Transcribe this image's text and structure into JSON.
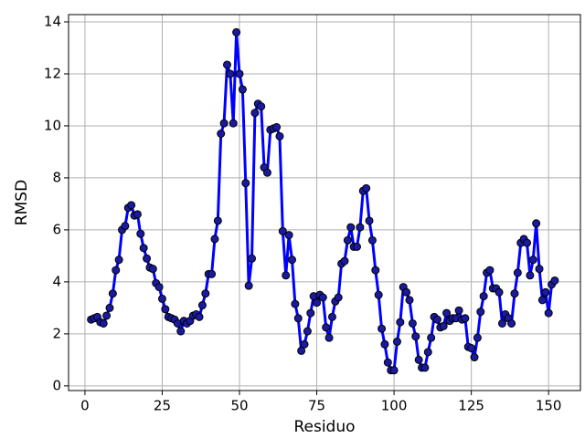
{
  "chart_data": {
    "type": "line",
    "x_label": "Residuo",
    "y_label": "RMSD",
    "x": [
      2,
      3,
      4,
      5,
      6,
      7,
      8,
      9,
      10,
      11,
      12,
      13,
      14,
      15,
      16,
      17,
      18,
      19,
      20,
      21,
      22,
      23,
      24,
      25,
      26,
      27,
      28,
      29,
      30,
      31,
      32,
      33,
      34,
      35,
      36,
      37,
      38,
      39,
      40,
      41,
      42,
      43,
      44,
      45,
      46,
      47,
      48,
      49,
      50,
      51,
      52,
      53,
      54,
      55,
      56,
      57,
      58,
      59,
      60,
      61,
      62,
      63,
      64,
      65,
      66,
      67,
      68,
      69,
      70,
      71,
      72,
      73,
      74,
      75,
      76,
      77,
      78,
      79,
      80,
      81,
      82,
      83,
      84,
      85,
      86,
      87,
      88,
      89,
      90,
      91,
      92,
      93,
      94,
      95,
      96,
      97,
      98,
      99,
      100,
      101,
      102,
      103,
      104,
      105,
      106,
      107,
      108,
      109,
      110,
      111,
      112,
      113,
      114,
      115,
      116,
      117,
      118,
      119,
      120,
      121,
      122,
      123,
      124,
      125,
      126,
      127,
      128,
      129,
      130,
      131,
      132,
      133,
      134,
      135,
      136,
      137,
      138,
      139,
      140,
      141,
      142,
      143,
      144,
      145,
      146,
      147,
      148,
      149,
      150,
      151,
      152
    ],
    "series": [
      {
        "color": "#0000ff",
        "marker_color": "#1a1aa0",
        "values": [
          2.55,
          2.6,
          2.65,
          2.45,
          2.4,
          2.7,
          3.0,
          3.55,
          4.45,
          4.85,
          6.0,
          6.15,
          6.85,
          6.95,
          6.55,
          6.6,
          5.85,
          5.3,
          4.9,
          4.55,
          4.5,
          3.95,
          3.8,
          3.35,
          2.95,
          2.65,
          2.6,
          2.55,
          2.4,
          2.1,
          2.5,
          2.4,
          2.5,
          2.7,
          2.75,
          2.65,
          3.1,
          3.55,
          4.3,
          4.3,
          5.65,
          6.35,
          9.7,
          10.1,
          12.35,
          12.0,
          10.1,
          13.6,
          12.0,
          11.4,
          7.8,
          3.85,
          4.9,
          10.5,
          10.85,
          10.75,
          8.4,
          8.2,
          9.85,
          9.9,
          9.95,
          9.6,
          5.95,
          4.25,
          5.8,
          4.85,
          3.15,
          2.6,
          1.35,
          1.6,
          2.1,
          2.8,
          3.45,
          3.2,
          3.5,
          3.4,
          2.25,
          1.85,
          2.65,
          3.25,
          3.4,
          4.7,
          4.8,
          5.6,
          6.1,
          5.35,
          5.35,
          6.1,
          7.5,
          7.6,
          6.35,
          5.6,
          4.45,
          3.5,
          2.2,
          1.6,
          0.9,
          0.6,
          0.6,
          1.7,
          2.45,
          3.8,
          3.6,
          3.3,
          2.4,
          1.9,
          1.0,
          0.7,
          0.7,
          1.3,
          1.85,
          2.65,
          2.55,
          2.25,
          2.3,
          2.8,
          2.5,
          2.6,
          2.6,
          2.9,
          2.55,
          2.6,
          1.5,
          1.45,
          1.1,
          1.85,
          2.85,
          3.45,
          4.35,
          4.45,
          3.75,
          3.75,
          3.6,
          2.4,
          2.75,
          2.6,
          2.4,
          3.55,
          4.35,
          5.5,
          5.65,
          5.5,
          4.25,
          4.85,
          6.25,
          4.5,
          3.3,
          3.6,
          2.8,
          3.9,
          4.05
        ]
      }
    ],
    "xlim": [
      -5.3,
      160.3
    ],
    "ylim": [
      -0.18,
      14.28
    ],
    "xticks": [
      0,
      25,
      50,
      75,
      100,
      125,
      150
    ],
    "yticks": [
      0,
      2,
      4,
      6,
      8,
      10,
      12,
      14
    ],
    "grid": true
  }
}
